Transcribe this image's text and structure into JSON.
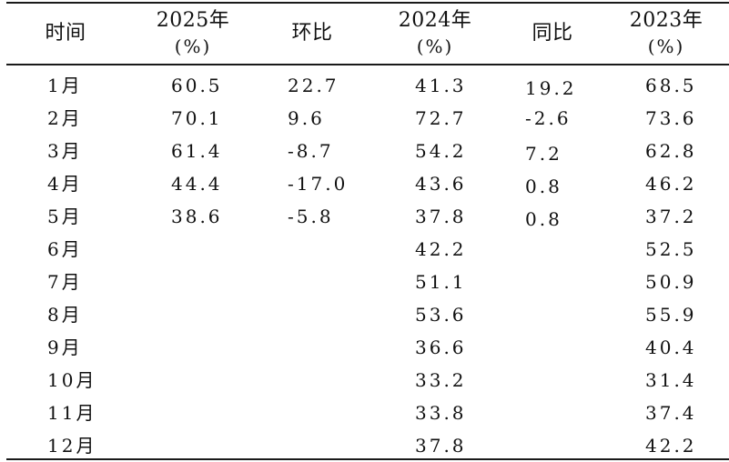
{
  "table": {
    "headers": [
      {
        "line1": "时间",
        "line2": ""
      },
      {
        "line1": "2025年",
        "line2": "(%)"
      },
      {
        "line1": "环比",
        "line2": ""
      },
      {
        "line1": "2024年",
        "line2": "(%)"
      },
      {
        "line1": "同比",
        "line2": ""
      },
      {
        "line1": "2023年",
        "line2": "(%)"
      }
    ],
    "rows": [
      [
        "1月",
        "60.5",
        "22.7",
        "41.3",
        "19.2",
        "68.5"
      ],
      [
        "2月",
        "70.1",
        "9.6",
        "72.7",
        "-2.6",
        "73.6"
      ],
      [
        "3月",
        "61.4",
        "-8.7",
        "54.2",
        "7.2",
        "62.8"
      ],
      [
        "4月",
        "44.4",
        "-17.0",
        "43.6",
        "0.8",
        "46.2"
      ],
      [
        "5月",
        "38.6",
        "-5.8",
        "37.8",
        "0.8",
        "37.2"
      ],
      [
        "6月",
        "",
        "",
        "42.2",
        "",
        "52.5"
      ],
      [
        "7月",
        "",
        "",
        "51.1",
        "",
        "50.9"
      ],
      [
        "8月",
        "",
        "",
        "53.6",
        "",
        "55.9"
      ],
      [
        "9月",
        "",
        "",
        "36.6",
        "",
        "40.4"
      ],
      [
        "10月",
        "",
        "",
        "33.2",
        "",
        "31.4"
      ],
      [
        "11月",
        "",
        "",
        "33.8",
        "",
        "37.4"
      ],
      [
        "12月",
        "",
        "",
        "37.8",
        "",
        "42.2"
      ]
    ]
  }
}
